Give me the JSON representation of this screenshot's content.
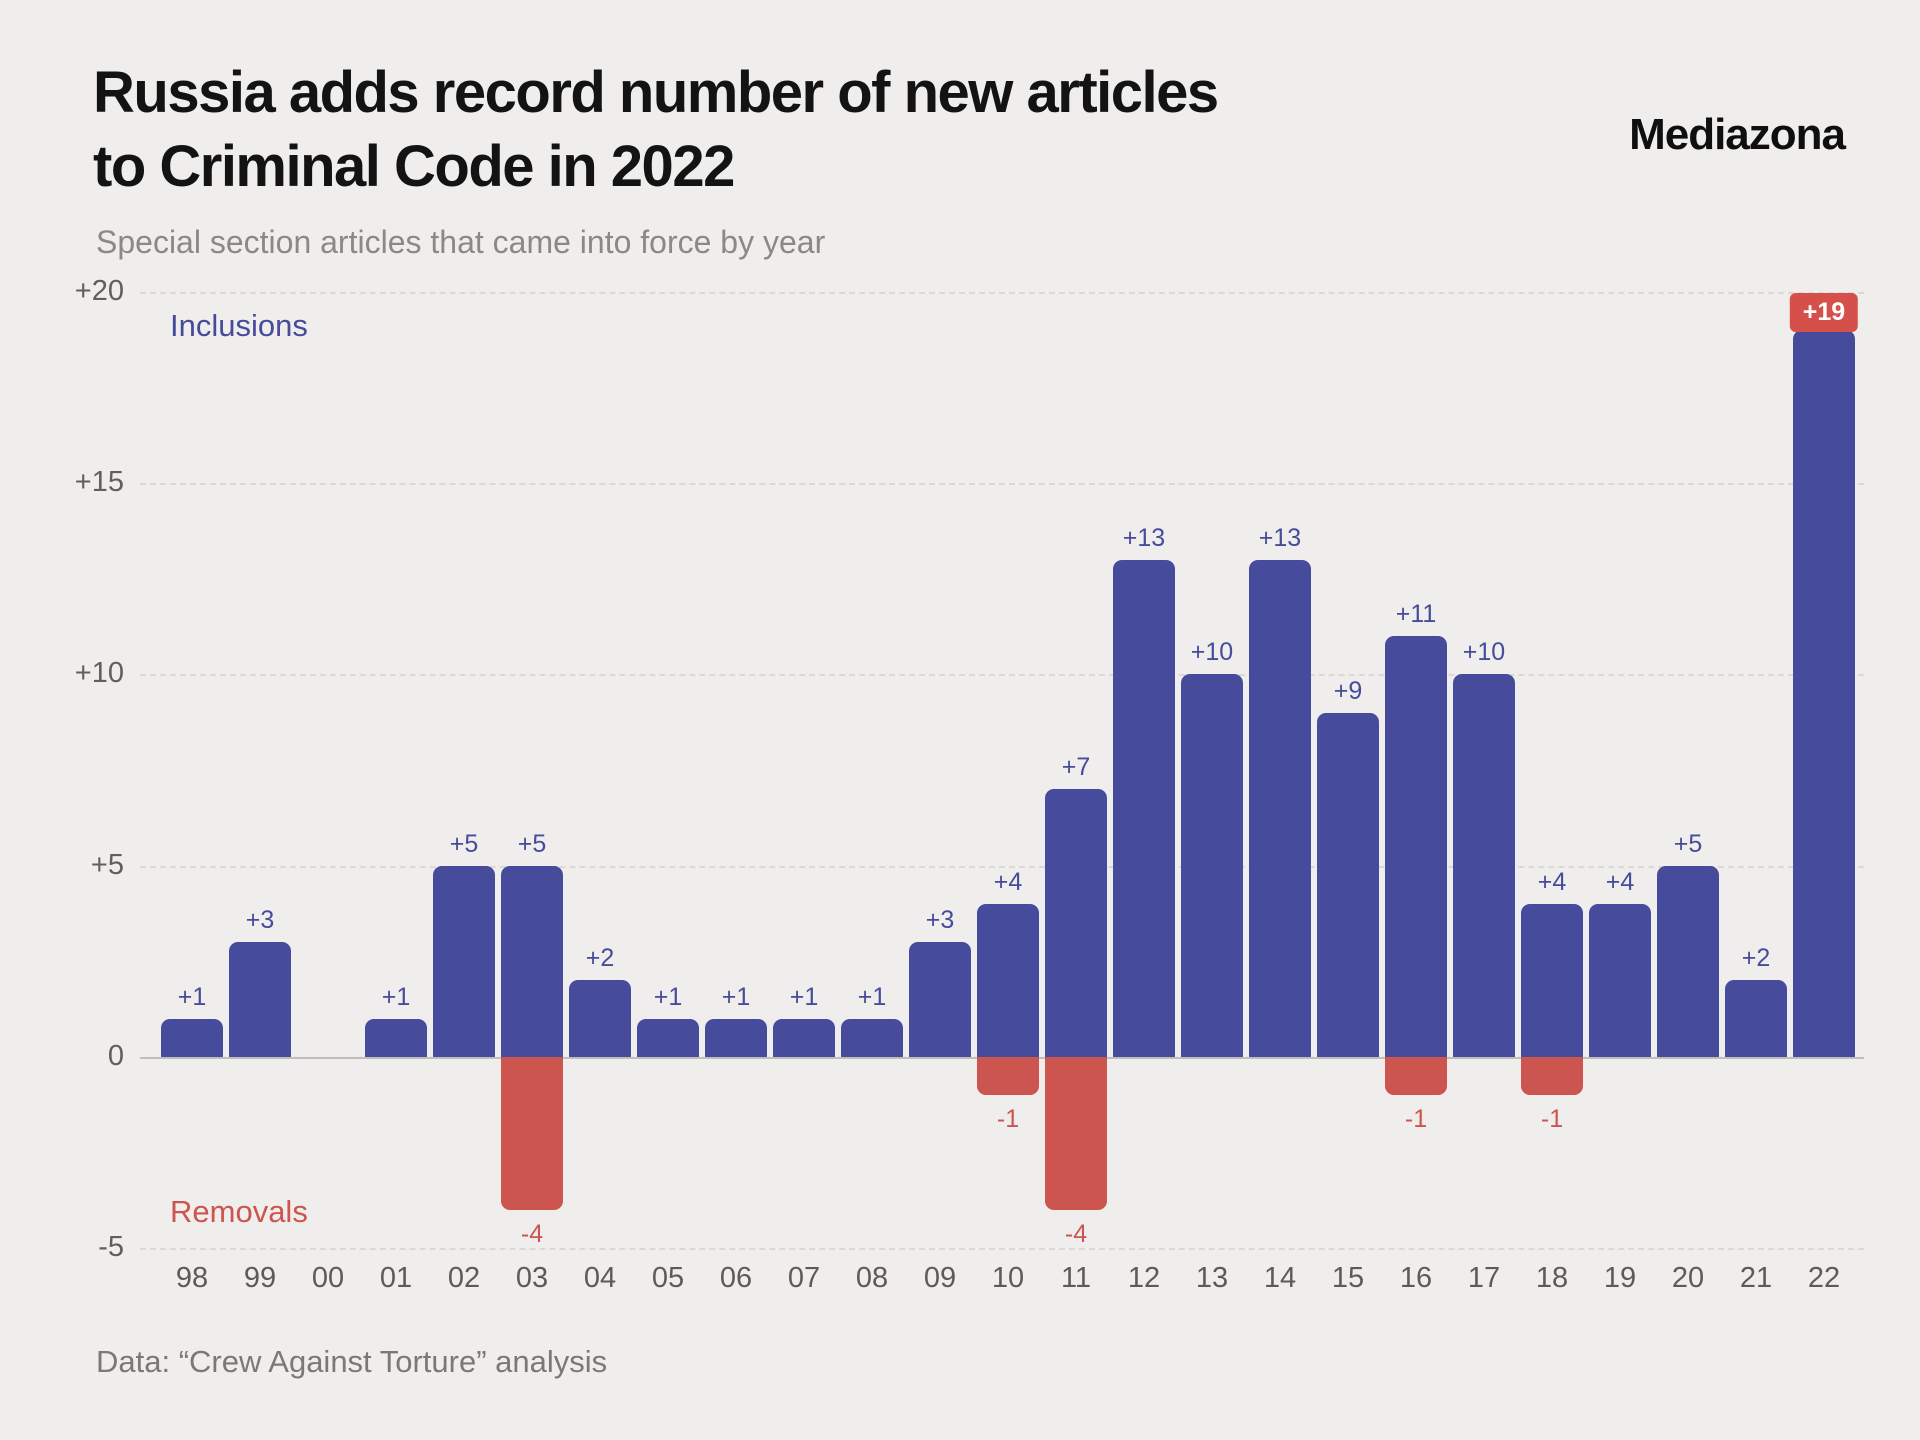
{
  "header": {
    "title_line1": "Russia adds record number of new articles",
    "title_line2": "to Criminal Code in 2022",
    "subtitle": "Special section articles that came into force by year",
    "logo": "Mediazona"
  },
  "chart_data": {
    "type": "bar",
    "title": "Russia adds record number of new articles to Criminal Code in 2022",
    "subtitle": "Special section articles that came into force by year",
    "categories": [
      "98",
      "99",
      "00",
      "01",
      "02",
      "03",
      "04",
      "05",
      "06",
      "07",
      "08",
      "09",
      "10",
      "11",
      "12",
      "13",
      "14",
      "15",
      "16",
      "17",
      "18",
      "19",
      "20",
      "21",
      "22"
    ],
    "series": [
      {
        "name": "Inclusions",
        "color": "#474b9b",
        "values": [
          1,
          3,
          0,
          1,
          5,
          5,
          2,
          1,
          1,
          1,
          1,
          3,
          4,
          7,
          13,
          10,
          13,
          9,
          11,
          10,
          4,
          4,
          5,
          2,
          19
        ]
      },
      {
        "name": "Removals",
        "color": "#cc5550",
        "values": [
          0,
          0,
          0,
          0,
          0,
          -4,
          0,
          0,
          0,
          0,
          0,
          0,
          -1,
          -4,
          0,
          0,
          0,
          0,
          -1,
          0,
          -1,
          0,
          0,
          0,
          0
        ]
      }
    ],
    "ylim": [
      -5,
      20
    ],
    "yticks": [
      {
        "value": 20,
        "label": "+20"
      },
      {
        "value": 15,
        "label": "+15"
      },
      {
        "value": 10,
        "label": "+10"
      },
      {
        "value": 5,
        "label": "+5"
      },
      {
        "value": 0,
        "label": "0"
      },
      {
        "value": -5,
        "label": "-5"
      }
    ],
    "grid": "horizontal dashed",
    "legend_position": "in-plot",
    "legend": {
      "inclusions": "Inclusions",
      "removals": "Removals"
    },
    "highlight": {
      "category": "22",
      "series": "Inclusions",
      "style": "badge",
      "badge_color": "#d5504b",
      "badge_text_color": "#ffffff"
    }
  },
  "footer": {
    "source": "Data: “Crew Against Torture” analysis"
  }
}
